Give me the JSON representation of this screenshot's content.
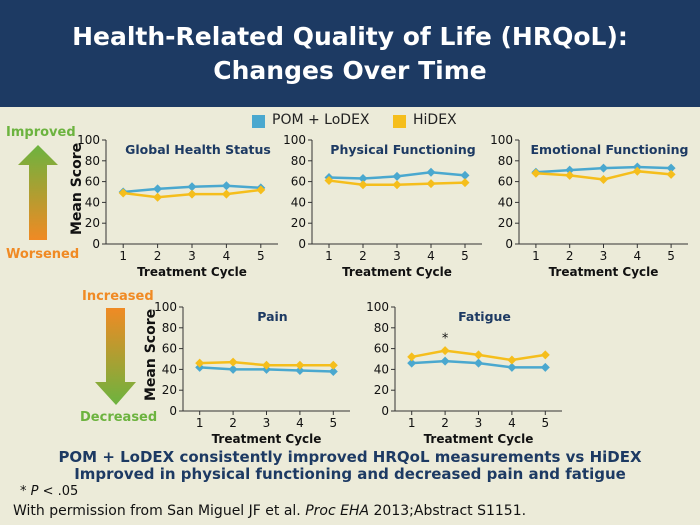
{
  "slide": {
    "title_line1": "Health-Related Quality of Life (HRQoL):",
    "title_line2": "Changes Over Time",
    "y_axis_label": "Mean Score",
    "x_axis_label": "Treatment Cycle",
    "arrow_top_improved": "Improved",
    "arrow_bottom_worsened": "Worsened",
    "arrow_top_increased": "Increased",
    "arrow_bottom_decreased": "Decreased",
    "summary_line1": "POM + LoDEX consistently improved HRQoL measurements vs HiDEX",
    "summary_line2": "Improved in physical functioning and decreased pain and fatigue",
    "footnote_mark": "*",
    "footnote_italic": "P",
    "footnote_rest": " < .05",
    "citation_prefix": "With permission from San Miguel JF et al. ",
    "citation_journal": "Proc EHA",
    "citation_suffix": " 2013;Abstract S1151."
  },
  "legend": [
    {
      "name": "POM + LoDEX",
      "color": "#4aa8cf"
    },
    {
      "name": "HiDEX",
      "color": "#f5be1c"
    }
  ],
  "colors": {
    "lodex": "#4aa8cf",
    "hidex": "#f5be1c",
    "title_bg": "#1d3a63",
    "improved_text": "#6cb33f",
    "worsened_text": "#f08a24"
  },
  "chart_data": [
    {
      "type": "line",
      "title": "Global Health Status",
      "xlabel": "Treatment Cycle",
      "ylabel": "Mean Score",
      "x": [
        1,
        2,
        3,
        4,
        5
      ],
      "ylim": [
        0,
        100
      ],
      "yticks": [
        0,
        20,
        40,
        60,
        80,
        100
      ],
      "series": [
        {
          "name": "POM + LoDEX",
          "values": [
            50,
            53,
            55,
            56,
            54
          ]
        },
        {
          "name": "HiDEX",
          "values": [
            49,
            45,
            48,
            48,
            52
          ]
        }
      ],
      "annotations": []
    },
    {
      "type": "line",
      "title": "Physical Functioning",
      "xlabel": "Treatment Cycle",
      "ylabel": "",
      "x": [
        1,
        2,
        3,
        4,
        5
      ],
      "ylim": [
        0,
        100
      ],
      "yticks": [
        0,
        20,
        40,
        60,
        80,
        100
      ],
      "series": [
        {
          "name": "POM + LoDEX",
          "values": [
            64,
            63,
            65,
            69,
            66
          ]
        },
        {
          "name": "HiDEX",
          "values": [
            61,
            57,
            57,
            58,
            59
          ]
        }
      ],
      "annotations": []
    },
    {
      "type": "line",
      "title": "Emotional Functioning",
      "xlabel": "Treatment Cycle",
      "ylabel": "",
      "x": [
        1,
        2,
        3,
        4,
        5
      ],
      "ylim": [
        0,
        100
      ],
      "yticks": [
        0,
        20,
        40,
        60,
        80,
        100
      ],
      "series": [
        {
          "name": "POM + LoDEX",
          "values": [
            69,
            71,
            73,
            74,
            73
          ]
        },
        {
          "name": "HiDEX",
          "values": [
            68,
            66,
            62,
            70,
            67
          ]
        }
      ],
      "annotations": []
    },
    {
      "type": "line",
      "title": "Pain",
      "xlabel": "Treatment Cycle",
      "ylabel": "Mean Score",
      "x": [
        1,
        2,
        3,
        4,
        5
      ],
      "ylim": [
        0,
        100
      ],
      "yticks": [
        0,
        20,
        40,
        60,
        80,
        100
      ],
      "series": [
        {
          "name": "POM + LoDEX",
          "values": [
            42,
            40,
            40,
            39,
            38
          ]
        },
        {
          "name": "HiDEX",
          "values": [
            46,
            47,
            44,
            44,
            44
          ]
        }
      ],
      "annotations": []
    },
    {
      "type": "line",
      "title": "Fatigue",
      "xlabel": "Treatment Cycle",
      "ylabel": "",
      "x": [
        1,
        2,
        3,
        4,
        5
      ],
      "ylim": [
        0,
        100
      ],
      "yticks": [
        0,
        20,
        40,
        60,
        80,
        100
      ],
      "series": [
        {
          "name": "POM + LoDEX",
          "values": [
            46,
            48,
            46,
            42,
            42
          ]
        },
        {
          "name": "HiDEX",
          "values": [
            52,
            58,
            54,
            49,
            54
          ]
        }
      ],
      "annotations": [
        {
          "x": 2,
          "text": "*"
        }
      ]
    }
  ]
}
